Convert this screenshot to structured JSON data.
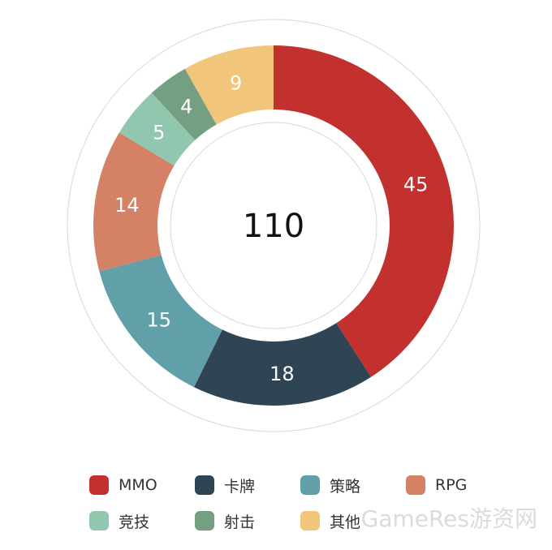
{
  "chart_data": {
    "type": "pie",
    "total": "110",
    "title": "",
    "categories": [
      "MMO",
      "卡牌",
      "策略",
      "RPG",
      "竞技",
      "射击",
      "其他"
    ],
    "values": [
      45,
      18,
      15,
      14,
      5,
      4,
      9
    ],
    "colors": [
      "#c2312e",
      "#2f4554",
      "#61a0a8",
      "#d48265",
      "#91c7ae",
      "#749f83",
      "#f2c67a"
    ],
    "legend_position": "bottom"
  },
  "watermark_text": "GameRes游资网"
}
